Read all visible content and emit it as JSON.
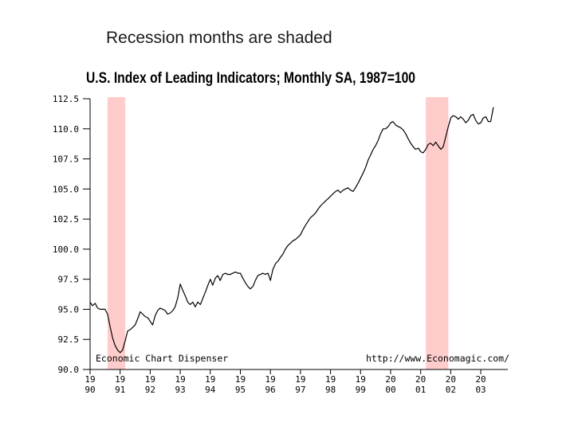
{
  "slide": {
    "note": "Recession months are shaded"
  },
  "chart_data": {
    "type": "line",
    "title": "U.S. Index of Leading Indicators; Monthly SA, 1987=100",
    "xlabel": "",
    "ylabel": "",
    "ylim": [
      90.0,
      112.5
    ],
    "y_ticks": [
      "112.5",
      "110.0",
      "107.5",
      "105.0",
      "102.5",
      "100.0",
      "97.5",
      "95.0",
      "92.5",
      "90.0"
    ],
    "x_ticks": [
      {
        "top": "19",
        "bottom": "90"
      },
      {
        "top": "19",
        "bottom": "91"
      },
      {
        "top": "19",
        "bottom": "92"
      },
      {
        "top": "19",
        "bottom": "93"
      },
      {
        "top": "19",
        "bottom": "94"
      },
      {
        "top": "19",
        "bottom": "95"
      },
      {
        "top": "19",
        "bottom": "96"
      },
      {
        "top": "19",
        "bottom": "97"
      },
      {
        "top": "19",
        "bottom": "98"
      },
      {
        "top": "19",
        "bottom": "99"
      },
      {
        "top": "20",
        "bottom": "00"
      },
      {
        "top": "20",
        "bottom": "01"
      },
      {
        "top": "20",
        "bottom": "02"
      },
      {
        "top": "20",
        "bottom": "03"
      }
    ],
    "xlim": [
      1990.0,
      2003.9
    ],
    "recessions": [
      {
        "start": 1990.58,
        "end": 1991.17
      },
      {
        "start": 2001.17,
        "end": 2001.92
      }
    ],
    "series": [
      {
        "x": [
          1990.0,
          1990.08,
          1990.17,
          1990.25,
          1990.33,
          1990.42,
          1990.5,
          1990.58,
          1990.67,
          1990.75,
          1990.83,
          1990.92,
          1991.0,
          1991.08,
          1991.17,
          1991.25,
          1991.33,
          1991.42,
          1991.5,
          1991.58,
          1991.67,
          1991.75,
          1991.83,
          1991.92,
          1992.0,
          1992.08,
          1992.17,
          1992.25,
          1992.33,
          1992.42,
          1992.5,
          1992.58,
          1992.67,
          1992.75,
          1992.83,
          1992.92,
          1993.0,
          1993.08,
          1993.17,
          1993.25,
          1993.33,
          1993.42,
          1993.5,
          1993.58,
          1993.67,
          1993.75,
          1993.83,
          1993.92,
          1994.0,
          1994.08,
          1994.17,
          1994.25,
          1994.33,
          1994.42,
          1994.5,
          1994.58,
          1994.67,
          1994.75,
          1994.83,
          1994.92,
          1995.0,
          1995.08,
          1995.17,
          1995.25,
          1995.33,
          1995.42,
          1995.5,
          1995.58,
          1995.67,
          1995.75,
          1995.83,
          1995.92,
          1996.0,
          1996.08,
          1996.17,
          1996.25,
          1996.33,
          1996.42,
          1996.5,
          1996.58,
          1996.67,
          1996.75,
          1996.83,
          1996.92,
          1997.0,
          1997.08,
          1997.17,
          1997.25,
          1997.33,
          1997.42,
          1997.5,
          1997.58,
          1997.67,
          1997.75,
          1997.83,
          1997.92,
          1998.0,
          1998.08,
          1998.17,
          1998.25,
          1998.33,
          1998.42,
          1998.5,
          1998.58,
          1998.67,
          1998.75,
          1998.83,
          1998.92,
          1999.0,
          1999.08,
          1999.17,
          1999.25,
          1999.33,
          1999.42,
          1999.5,
          1999.58,
          1999.67,
          1999.75,
          1999.83,
          1999.92,
          2000.0,
          2000.08,
          2000.17,
          2000.25,
          2000.33,
          2000.42,
          2000.5,
          2000.58,
          2000.67,
          2000.75,
          2000.83,
          2000.92,
          2001.0,
          2001.08,
          2001.17,
          2001.25,
          2001.33,
          2001.42,
          2001.5,
          2001.58,
          2001.67,
          2001.75,
          2001.83,
          2001.92,
          2002.0,
          2002.08,
          2002.17,
          2002.25,
          2002.33,
          2002.42,
          2002.5,
          2002.58,
          2002.67,
          2002.75,
          2002.83,
          2002.92,
          2003.0,
          2003.08,
          2003.17,
          2003.25,
          2003.33,
          2003.42
        ],
        "values": [
          95.6,
          95.3,
          95.5,
          95.1,
          95.0,
          95.0,
          95.0,
          94.6,
          93.5,
          92.6,
          92.0,
          91.6,
          91.4,
          91.6,
          92.4,
          93.2,
          93.3,
          93.5,
          93.7,
          94.2,
          94.8,
          94.6,
          94.4,
          94.3,
          94.0,
          93.7,
          94.5,
          94.9,
          95.1,
          95.0,
          94.9,
          94.6,
          94.7,
          94.9,
          95.2,
          96.0,
          97.1,
          96.6,
          96.1,
          95.6,
          95.4,
          95.6,
          95.2,
          95.6,
          95.4,
          95.9,
          96.4,
          97.0,
          97.5,
          97.0,
          97.6,
          97.8,
          97.4,
          97.9,
          98.0,
          97.9,
          97.9,
          98.0,
          98.1,
          98.0,
          98.0,
          97.6,
          97.2,
          96.9,
          96.7,
          96.9,
          97.4,
          97.8,
          97.9,
          98.0,
          97.9,
          98.0,
          97.4,
          98.3,
          98.8,
          99.0,
          99.3,
          99.6,
          100.0,
          100.3,
          100.5,
          100.7,
          100.8,
          101.0,
          101.2,
          101.6,
          102.0,
          102.3,
          102.6,
          102.8,
          103.0,
          103.3,
          103.6,
          103.8,
          104.0,
          104.2,
          104.4,
          104.6,
          104.8,
          104.9,
          104.7,
          104.9,
          105.0,
          105.1,
          104.9,
          104.8,
          105.1,
          105.5,
          105.9,
          106.3,
          106.8,
          107.4,
          107.8,
          108.3,
          108.6,
          109.0,
          109.6,
          110.0,
          110.0,
          110.2,
          110.5,
          110.6,
          110.3,
          110.2,
          110.1,
          109.9,
          109.6,
          109.2,
          108.8,
          108.5,
          108.3,
          108.4,
          108.1,
          108.0,
          108.3,
          108.7,
          108.8,
          108.6,
          108.9,
          108.6,
          108.3,
          108.5,
          109.3,
          110.2,
          110.9,
          111.1,
          111.0,
          110.8,
          111.0,
          110.8,
          110.5,
          110.7,
          111.1,
          111.2,
          110.7,
          110.4,
          110.5,
          110.9,
          111.0,
          110.6,
          110.6,
          111.8
        ]
      }
    ],
    "annotations": {
      "left_credit": "Economic Chart Dispenser",
      "right_credit": "http://www.Economagic.com/"
    },
    "colors": {
      "recession": "#ffcccc",
      "line": "#000000",
      "axis": "#000000"
    },
    "grid": false
  }
}
